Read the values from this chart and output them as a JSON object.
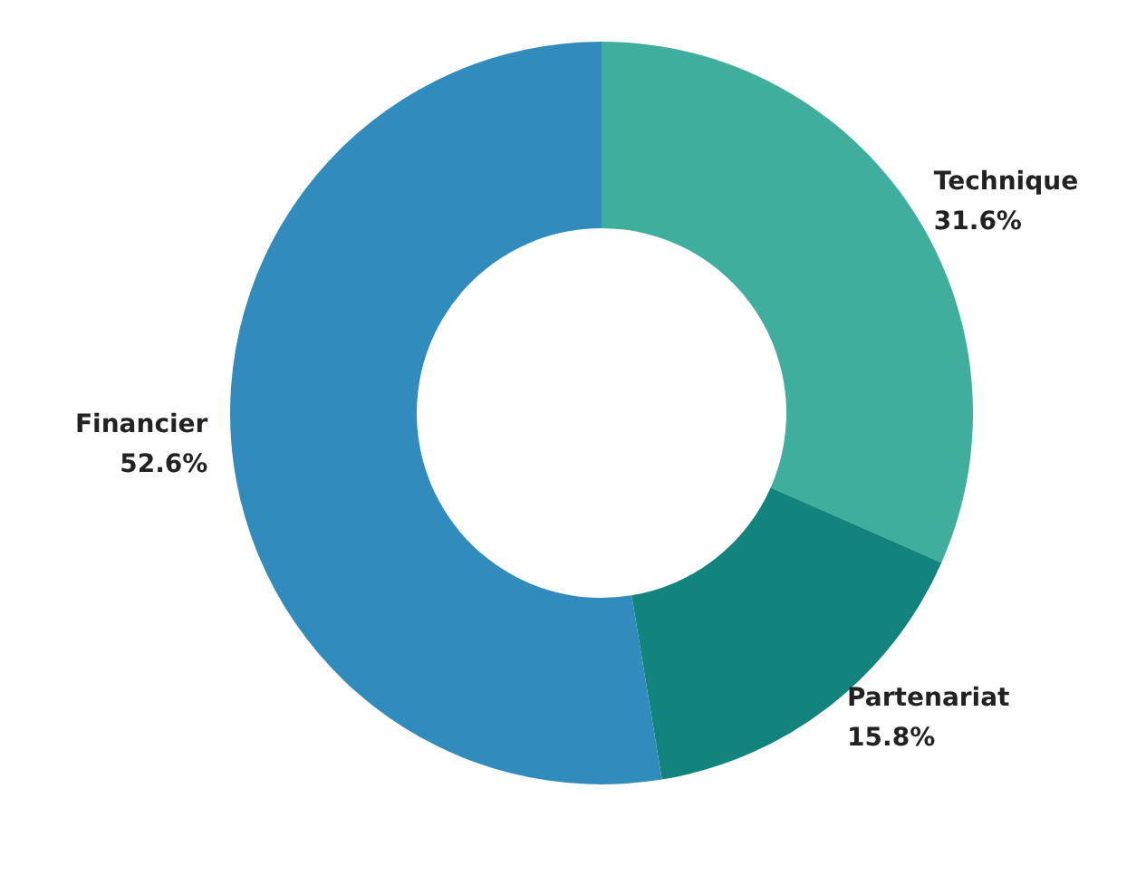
{
  "chart_data": {
    "type": "donut",
    "categories": [
      "Technique",
      "Partenariat",
      "Financier"
    ],
    "values": [
      31.6,
      15.8,
      52.6
    ],
    "colors": [
      "#3fae9c",
      "#13837e",
      "#318bbd"
    ],
    "value_labels": [
      "31.6%",
      "15.8%",
      "52.6%"
    ],
    "legend": false
  }
}
